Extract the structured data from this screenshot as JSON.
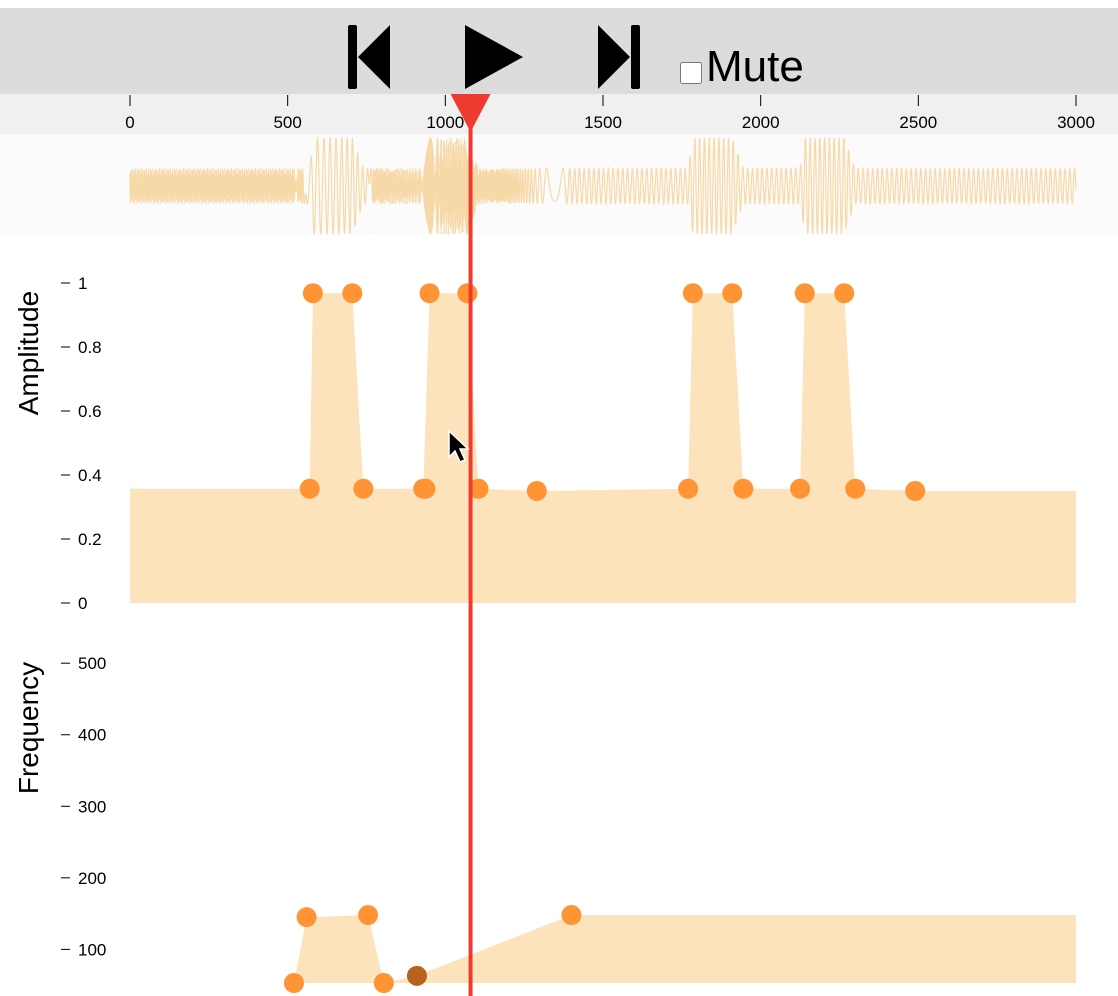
{
  "toolbar": {
    "prev_icon": "skip-back-icon",
    "play_icon": "play-icon",
    "next_icon": "skip-forward-icon",
    "mute_label": "Mute",
    "mute_checked": false
  },
  "timeline": {
    "ticks": [
      0,
      500,
      1000,
      1500,
      2000,
      2500,
      3000
    ],
    "tick_labels": [
      "0",
      "500",
      "1000",
      "1500",
      "2000",
      "2500",
      "3000"
    ],
    "range": [
      0,
      3000
    ],
    "playhead_time": 1080
  },
  "amplitude": {
    "title": "Amplitude",
    "ticks": [
      1,
      0.8,
      0.6,
      0.4,
      0.2,
      0
    ],
    "tick_labels": [
      "1",
      "0.8",
      "0.6",
      "0.4",
      "0.2",
      "0"
    ],
    "range": [
      0,
      1
    ],
    "points": [
      [
        0,
        0.357
      ],
      [
        570,
        0.357
      ],
      [
        580,
        0.968
      ],
      [
        705,
        0.968
      ],
      [
        740,
        0.357
      ],
      [
        930,
        0.357
      ],
      [
        950,
        0.968
      ],
      [
        1070,
        0.968
      ],
      [
        1105,
        0.357
      ],
      [
        1290,
        0.35
      ],
      [
        1770,
        0.357
      ],
      [
        1785,
        0.968
      ],
      [
        1910,
        0.968
      ],
      [
        1945,
        0.357
      ],
      [
        2125,
        0.357
      ],
      [
        2140,
        0.968
      ],
      [
        2265,
        0.968
      ],
      [
        2300,
        0.357
      ],
      [
        2490,
        0.35
      ],
      [
        3000,
        0.35
      ]
    ],
    "handles": [
      [
        580,
        0.968
      ],
      [
        705,
        0.968
      ],
      [
        950,
        0.968
      ],
      [
        1070,
        0.968
      ],
      [
        1785,
        0.968
      ],
      [
        1910,
        0.968
      ],
      [
        2140,
        0.968
      ],
      [
        2265,
        0.968
      ],
      [
        570,
        0.357
      ],
      [
        740,
        0.357
      ],
      [
        930,
        0.357
      ],
      [
        937,
        0.357
      ],
      [
        1105,
        0.357
      ],
      [
        1290,
        0.35
      ],
      [
        1770,
        0.357
      ],
      [
        1945,
        0.357
      ],
      [
        2125,
        0.357
      ],
      [
        2300,
        0.357
      ],
      [
        2490,
        0.35
      ]
    ]
  },
  "frequency": {
    "title": "Frequency",
    "ticks": [
      500,
      400,
      300,
      200,
      100
    ],
    "tick_labels": [
      "500",
      "400",
      "300",
      "200",
      100
    ],
    "range": [
      53,
      570
    ],
    "points": [
      [
        0,
        53
      ],
      [
        520,
        53
      ],
      [
        560,
        145
      ],
      [
        755,
        148
      ],
      [
        805,
        53
      ],
      [
        910,
        63
      ],
      [
        1400,
        148
      ],
      [
        3000,
        148
      ]
    ],
    "handles": [
      [
        520,
        53
      ],
      [
        560,
        145
      ],
      [
        755,
        148
      ],
      [
        805,
        53
      ],
      [
        1400,
        148
      ]
    ],
    "selected_handle": [
      910,
      63
    ]
  },
  "colors": {
    "fill": "#fde3bc",
    "handle": "#ff9435",
    "handle_selected": "#b8621b",
    "playhead": "#ee3b30",
    "wave": "#f7d9a8"
  }
}
